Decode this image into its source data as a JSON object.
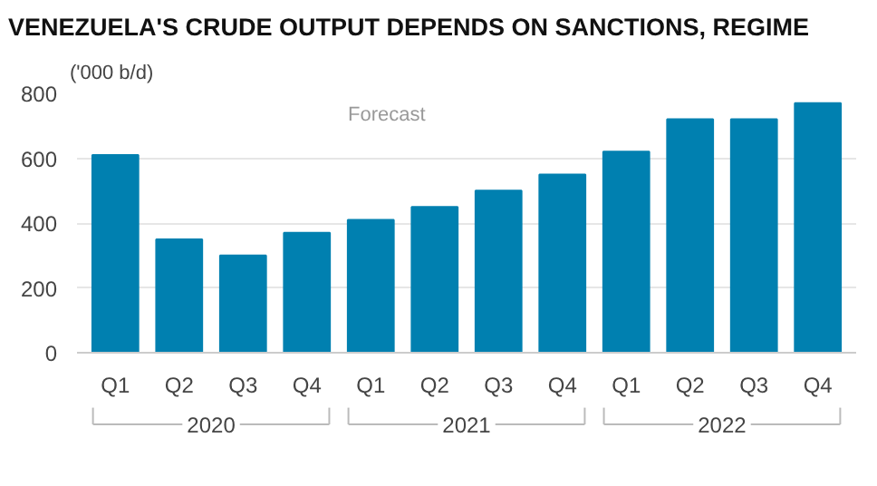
{
  "chart_data": {
    "type": "bar",
    "title": "VENEZUELA'S CRUDE OUTPUT DEPENDS ON SANCTIONS, REGIME",
    "ylabel": "('000 b/d)",
    "categories": [
      "Q1",
      "Q2",
      "Q3",
      "Q4",
      "Q1",
      "Q2",
      "Q3",
      "Q4",
      "Q1",
      "Q2",
      "Q3",
      "Q4"
    ],
    "values": [
      610,
      350,
      300,
      370,
      410,
      450,
      500,
      550,
      620,
      720,
      720,
      770
    ],
    "color": "#0080b0",
    "annotations": [
      "Forecast",
      "2020",
      "2021",
      "2022"
    ],
    "ylim": [
      0,
      800
    ],
    "yticks": [
      0,
      200,
      400,
      600,
      800
    ],
    "grid": "y"
  }
}
